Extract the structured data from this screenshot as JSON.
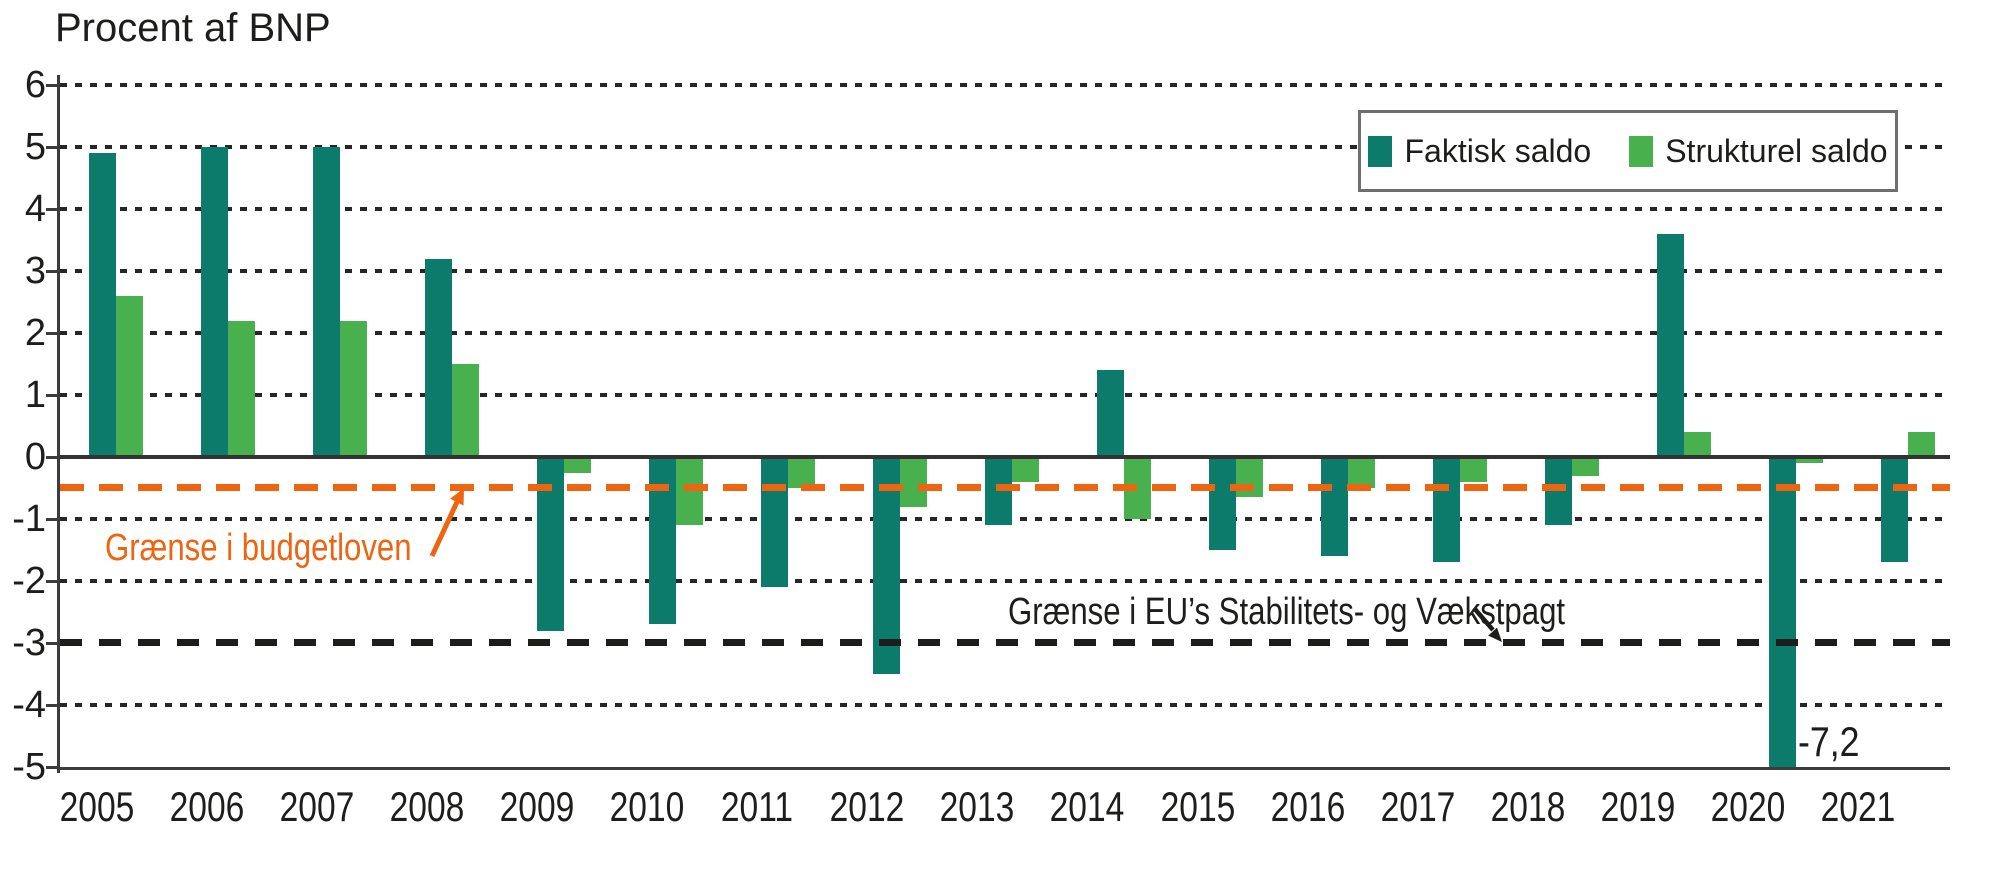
{
  "chart_data": {
    "type": "bar",
    "title": "Procent af BNP",
    "categories": [
      "2005",
      "2006",
      "2007",
      "2008",
      "2009",
      "2010",
      "2011",
      "2012",
      "2013",
      "2014",
      "2015",
      "2016",
      "2017",
      "2018",
      "2019",
      "2020",
      "2021"
    ],
    "series": [
      {
        "name": "Faktisk saldo",
        "color": "#0c7b6c",
        "values": [
          4.9,
          5.0,
          5.0,
          3.2,
          -2.8,
          -2.7,
          -2.1,
          -3.5,
          -1.1,
          1.4,
          -1.5,
          -1.6,
          -1.7,
          -1.1,
          3.6,
          -7.2,
          -1.7
        ]
      },
      {
        "name": "Strukturel saldo",
        "color": "#48b14e",
        "values": [
          2.6,
          2.2,
          2.2,
          1.5,
          -0.25,
          -1.1,
          -0.5,
          -0.8,
          -0.4,
          -1.0,
          -0.65,
          -0.5,
          -0.4,
          -0.3,
          0.4,
          -0.1,
          0.4
        ]
      }
    ],
    "ylabel": "Procent af BNP",
    "ylim": [
      -5,
      6.2
    ],
    "y_ticks": [
      6,
      5,
      4,
      3,
      2,
      1,
      0,
      -1,
      -2,
      -3,
      -4,
      -5
    ],
    "grid": "dotted horizontal lines at integer values",
    "legend_position": "top-right",
    "reference_lines": [
      {
        "value": -0.5,
        "label": "Grænse i budgetloven",
        "color": "#ee6511",
        "style": "thick-dashed"
      },
      {
        "value": -3.0,
        "label": "Grænse i EU’s Stabilitets- og Vækstpagt",
        "color": "#1d1d1b",
        "style": "thick-dashed"
      }
    ],
    "value_labels": [
      {
        "category": "2020",
        "series": "Faktisk saldo",
        "text": "-7,2"
      }
    ]
  }
}
